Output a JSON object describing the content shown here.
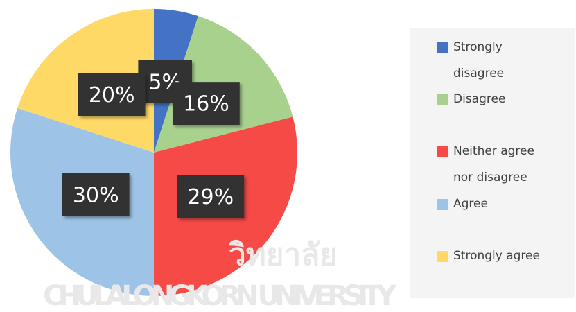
{
  "chart_data": {
    "type": "pie",
    "categories": [
      "Strongly disagree",
      "Disagree",
      "Neither agree nor disagree",
      "Agree",
      "Strongly agree"
    ],
    "values": [
      5,
      16,
      29,
      30,
      20
    ],
    "value_labels": [
      "5%",
      "16%",
      "29%",
      "30%",
      "20%"
    ],
    "colors": [
      "#4472c4",
      "#a9d18e",
      "#f64a47",
      "#9dc3e6",
      "#ffd966"
    ],
    "watermark": [
      "วิทยาลัย",
      "CHULALONGKORN UNIVERSITY"
    ]
  }
}
